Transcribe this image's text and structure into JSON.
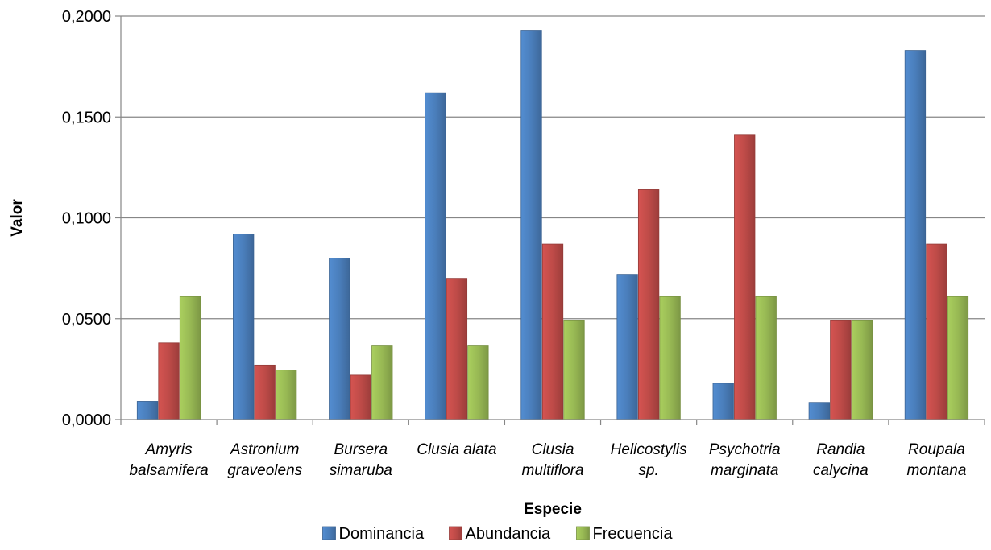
{
  "chart_data": {
    "type": "bar",
    "title": "",
    "xlabel": "Especie",
    "ylabel": "Valor",
    "ylim": [
      0,
      0.2
    ],
    "yticks": [
      "0,0000",
      "0,0500",
      "0,1000",
      "0,1500",
      "0,2000"
    ],
    "grid": true,
    "legend_position": "bottom",
    "categories": [
      [
        "Amyris",
        "balsamifera"
      ],
      [
        "Astronium",
        "graveolens"
      ],
      [
        "Bursera",
        "simaruba"
      ],
      [
        "Clusia alata"
      ],
      [
        "Clusia",
        "multiflora"
      ],
      [
        "Helicostylis",
        "sp."
      ],
      [
        "Psychotria",
        "marginata"
      ],
      [
        "Randia",
        "calycina"
      ],
      [
        "Roupala",
        "montana"
      ]
    ],
    "series": [
      {
        "name": "Dominancia",
        "color": "#4a7ebb",
        "values": [
          0.009,
          0.092,
          0.08,
          0.162,
          0.193,
          0.072,
          0.018,
          0.0085,
          0.183
        ]
      },
      {
        "name": "Abundancia",
        "color": "#be4b48",
        "values": [
          0.038,
          0.027,
          0.022,
          0.07,
          0.087,
          0.114,
          0.141,
          0.049,
          0.087
        ]
      },
      {
        "name": "Frecuencia",
        "color": "#98b954",
        "values": [
          0.061,
          0.0245,
          0.0365,
          0.0365,
          0.049,
          0.061,
          0.061,
          0.049,
          0.061
        ]
      }
    ]
  }
}
